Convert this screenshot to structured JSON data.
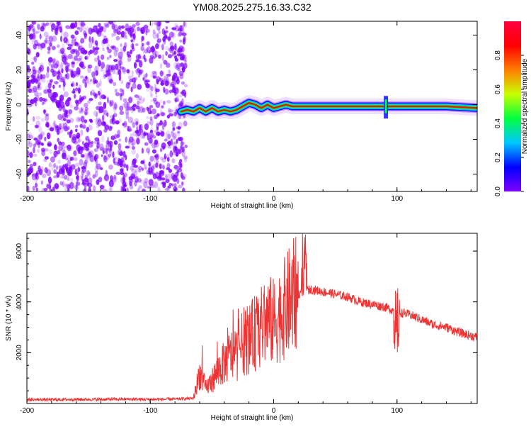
{
  "title": "YM08.2025.275.16.33.C32",
  "colors": {
    "scatter": "#7f00ff",
    "trace": "#ee3333",
    "colorbar": [
      "#7f00ff",
      "#0000ff",
      "#00c8ff",
      "#00ff40",
      "#c8ff00",
      "#ff7f00",
      "#ff0000",
      "#ff0040"
    ]
  },
  "chart_data": [
    {
      "type": "heatmap",
      "xlabel": "Height of straight line (km)",
      "ylabel": "Frequency (Hz)",
      "xlim": [
        -200,
        165
      ],
      "ylim": [
        -50,
        48
      ],
      "x_ticks": [
        -200,
        -100,
        0,
        100
      ],
      "x_tick_labels": [
        "-200",
        "-100",
        "0",
        "100"
      ],
      "y_ticks": [
        -40,
        -20,
        0,
        20,
        40
      ],
      "y_tick_labels": [
        "-40",
        "-20",
        "0",
        "20",
        "40"
      ],
      "noise_region_x": [
        -200,
        -75
      ],
      "ridge": {
        "x": [
          -75,
          -70,
          -65,
          -60,
          -55,
          -50,
          -45,
          -40,
          -35,
          -30,
          -25,
          -20,
          -15,
          -10,
          -5,
          0,
          5,
          10,
          15,
          20,
          40,
          60,
          80,
          90,
          100,
          120,
          140,
          165
        ],
        "y": [
          -4,
          -3,
          -4,
          -2,
          -4,
          -2,
          -4,
          -3,
          -4,
          -3,
          -1,
          1,
          0,
          -2,
          0,
          -2,
          -1,
          0,
          -1,
          -1,
          -1,
          -1,
          -1,
          -1,
          -1,
          -1,
          -1,
          -2
        ]
      },
      "colorbar": {
        "label": "Normalized spectral amplitude",
        "range": [
          0,
          1
        ],
        "ticks": [
          0.0,
          0.2,
          0.4,
          0.6,
          0.8
        ],
        "tick_labels": [
          "0.0",
          "0.2",
          "0.4",
          "0.6",
          "0.8"
        ]
      }
    },
    {
      "type": "line",
      "xlabel": "Height of straight line (km)",
      "ylabel": "SNR (10 * v/v)",
      "xlim": [
        -200,
        165
      ],
      "ylim": [
        0,
        6700
      ],
      "x_ticks": [
        -200,
        -100,
        0,
        100
      ],
      "x_tick_labels": [
        "-200",
        "-100",
        "0",
        "100"
      ],
      "y_ticks": [
        2000,
        4000,
        6000
      ],
      "y_tick_labels": [
        "2000",
        "4000",
        "6000"
      ],
      "series": [
        {
          "x": [
            -200,
            -180,
            -160,
            -140,
            -120,
            -100,
            -80,
            -65,
            -60,
            -55,
            -50,
            -45,
            -40,
            -35,
            -30,
            -25,
            -20,
            -15,
            -10,
            -5,
            0,
            5,
            10,
            15,
            20,
            25,
            30,
            40,
            50,
            60,
            70,
            80,
            90,
            95,
            100,
            110,
            120,
            130,
            140,
            150,
            165
          ],
          "y": [
            150,
            150,
            160,
            160,
            170,
            160,
            170,
            200,
            1200,
            600,
            900,
            1300,
            1600,
            1900,
            1900,
            2400,
            2500,
            2800,
            3000,
            3300,
            3200,
            3500,
            3800,
            4200,
            4300,
            4400,
            4500,
            4400,
            4300,
            4200,
            4000,
            3900,
            3800,
            3700,
            3600,
            3500,
            3300,
            3100,
            3000,
            2800,
            2600
          ]
        }
      ]
    }
  ]
}
